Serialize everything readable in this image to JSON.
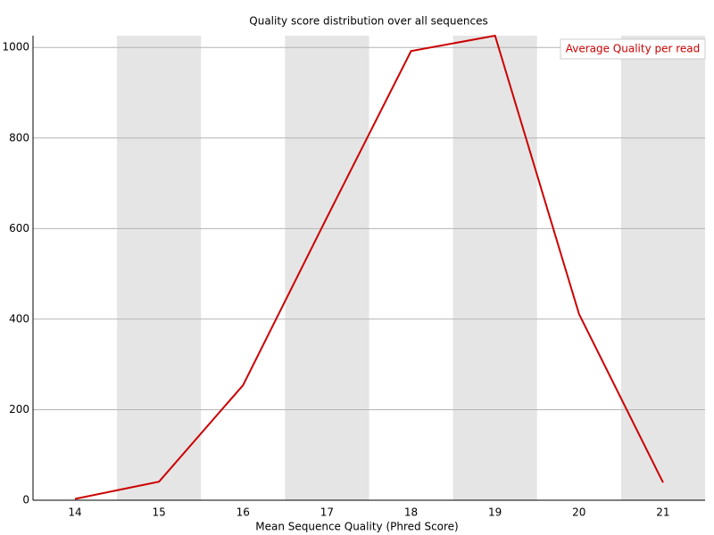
{
  "chart_data": {
    "type": "line",
    "title": "Quality score distribution over all sequences",
    "x_label": "Mean Sequence Quality (Phred Score)",
    "categories": [
      "14",
      "15",
      "16",
      "17",
      "18",
      "19",
      "20",
      "21"
    ],
    "series": [
      {
        "name": "Average Quality per read",
        "color": "#cc0000",
        "values": [
          3,
          41,
          254,
          625,
          992,
          1026,
          411,
          39
        ]
      }
    ],
    "ylim": [
      0,
      1026
    ],
    "yticks": [
      0,
      200,
      400,
      600,
      800,
      1000
    ],
    "grid": true,
    "legend": "top-right"
  }
}
